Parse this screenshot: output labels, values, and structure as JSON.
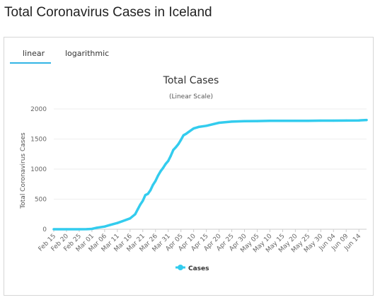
{
  "page": {
    "title": "Total Coronavirus Cases in Iceland"
  },
  "tabs": [
    {
      "label": "linear",
      "active": true
    },
    {
      "label": "logarithmic",
      "active": false
    }
  ],
  "colors": {
    "series": "#33ccee",
    "accent": "#33b5e5",
    "grid": "#eeeeee"
  },
  "chart_data": {
    "type": "line",
    "title": "Total Cases",
    "subtitle": "(Linear Scale)",
    "ylabel": "Total Coronavirus Cases",
    "xlabel": "",
    "ylim": [
      0,
      2000
    ],
    "yticks": [
      0,
      500,
      1000,
      1500,
      2000
    ],
    "grid": true,
    "legend": "bottom-center",
    "xticks": [
      "Feb 15",
      "Feb 20",
      "Feb 25",
      "Mar 01",
      "Mar 06",
      "Mar 11",
      "Mar 16",
      "Mar 21",
      "Mar 26",
      "Mar 31",
      "Apr 05",
      "Apr 10",
      "Apr 15",
      "Apr 20",
      "Apr 25",
      "Apr 30",
      "May 05",
      "May 10",
      "May 15",
      "May 20",
      "May 25",
      "May 30",
      "Jun 04",
      "Jun 09",
      "Jun 14"
    ],
    "series": [
      {
        "name": "Cases",
        "x": [
          "Feb 15",
          "Feb 20",
          "Feb 25",
          "Feb 28",
          "Mar 01",
          "Mar 03",
          "Mar 06",
          "Mar 08",
          "Mar 11",
          "Mar 13",
          "Mar 16",
          "Mar 18",
          "Mar 19",
          "Mar 20",
          "Mar 21",
          "Mar 22",
          "Mar 23",
          "Mar 24",
          "Mar 25",
          "Mar 26",
          "Mar 27",
          "Mar 28",
          "Mar 29",
          "Mar 30",
          "Mar 31",
          "Apr 01",
          "Apr 02",
          "Apr 03",
          "Apr 04",
          "Apr 05",
          "Apr 06",
          "Apr 07",
          "Apr 08",
          "Apr 10",
          "Apr 12",
          "Apr 15",
          "Apr 20",
          "Apr 25",
          "Apr 30",
          "May 05",
          "May 10",
          "May 15",
          "May 20",
          "May 25",
          "May 30",
          "Jun 04",
          "Jun 09",
          "Jun 14",
          "Jun 17"
        ],
        "values": [
          0,
          0,
          0,
          1,
          6,
          26,
          45,
          69,
          103,
          134,
          180,
          250,
          330,
          409,
          473,
          568,
          588,
          648,
          737,
          802,
          890,
          963,
          1020,
          1086,
          1135,
          1220,
          1319,
          1364,
          1417,
          1486,
          1562,
          1586,
          1616,
          1675,
          1701,
          1720,
          1771,
          1789,
          1797,
          1799,
          1802,
          1802,
          1803,
          1804,
          1806,
          1806,
          1807,
          1810,
          1816
        ]
      }
    ]
  }
}
